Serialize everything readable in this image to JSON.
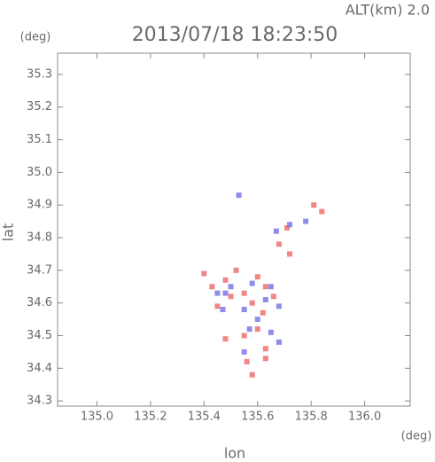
{
  "chart_data": {
    "type": "scatter",
    "title": "2013/07/18 18:23:50",
    "annotation": "ALT(km) 2.0",
    "x_unit": "(deg)",
    "y_unit": "(deg)",
    "x_label": "lon",
    "y_label": "lat",
    "xlim": [
      134.853,
      136.17
    ],
    "ylim": [
      34.284,
      35.365
    ],
    "xticks": [
      {
        "value": 135.0,
        "label": "135.0"
      },
      135.2,
      135.4,
      135.6,
      135.8,
      {
        "value": 136.0,
        "label": "136.0"
      }
    ],
    "yticks": [
      34.3,
      34.4,
      34.5,
      34.6,
      34.7,
      34.8,
      34.9,
      {
        "value": 35.0,
        "label": "35.0"
      },
      35.1,
      35.2,
      35.3
    ],
    "grid": false,
    "series": [
      {
        "color": "#f07070",
        "x": [
          135.84,
          135.72,
          135.71,
          135.4,
          135.43,
          135.45,
          135.5,
          135.55,
          135.58,
          135.62,
          135.6,
          135.55,
          135.48,
          135.63,
          135.63,
          135.56,
          135.58,
          135.66,
          135.6,
          135.52,
          135.68,
          135.81,
          135.63,
          135.48
        ],
        "y": [
          34.88,
          34.75,
          34.83,
          34.69,
          34.65,
          34.59,
          34.62,
          34.63,
          34.6,
          34.57,
          34.52,
          34.5,
          34.49,
          34.46,
          34.43,
          34.42,
          34.38,
          34.62,
          34.68,
          34.7,
          34.78,
          34.9,
          34.65,
          34.67
        ]
      },
      {
        "color": "#7a7ae6",
        "x": [
          135.48,
          135.5,
          135.58,
          135.65,
          135.63,
          135.55,
          135.6,
          135.57,
          135.65,
          135.68,
          135.45,
          135.72,
          135.78,
          135.53,
          135.47,
          135.68,
          135.55,
          135.67
        ],
        "y": [
          34.63,
          34.65,
          34.66,
          34.65,
          34.61,
          34.58,
          34.55,
          34.52,
          34.51,
          34.48,
          34.63,
          34.84,
          34.85,
          34.93,
          34.58,
          34.59,
          34.45,
          34.82
        ]
      }
    ]
  }
}
